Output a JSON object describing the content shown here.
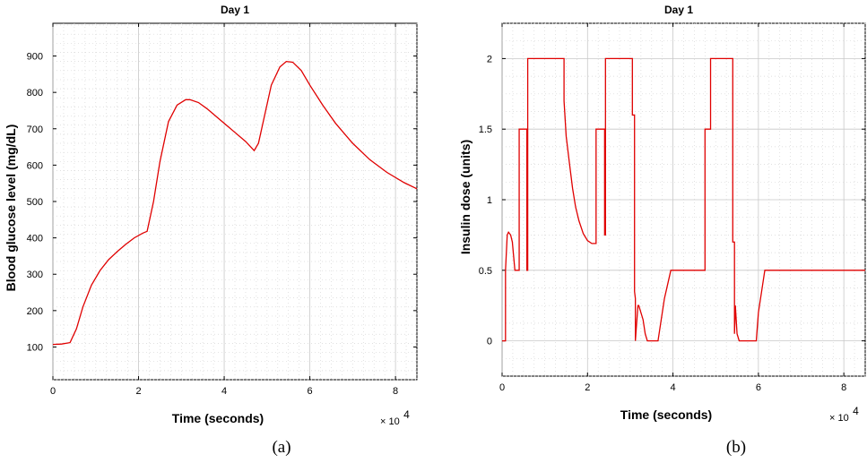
{
  "panels": [
    {
      "caption": "(a)",
      "multiplier_base": "× 10",
      "multiplier_exp": "4"
    },
    {
      "caption": "(b)",
      "multiplier_base": "× 10",
      "multiplier_exp": "4"
    }
  ],
  "chart_data": [
    {
      "type": "line",
      "title": "Day 1",
      "xlabel": "Time (seconds)",
      "ylabel": "Blood glucose level (mg/dL)",
      "x_scale_note": "x values in units of 10^4 seconds",
      "xlim": [
        0,
        8.5
      ],
      "ylim": [
        10,
        990
      ],
      "xticks": [
        0,
        2,
        4,
        6,
        8
      ],
      "xtick_labels": [
        "0",
        "2",
        "4",
        "6",
        "8"
      ],
      "yticks": [
        100,
        200,
        300,
        400,
        500,
        600,
        700,
        800,
        900
      ],
      "ytick_labels": [
        "100",
        "200",
        "300",
        "400",
        "500",
        "600",
        "700",
        "800",
        "900"
      ],
      "grid": true,
      "line_color": "#e00000",
      "series": [
        {
          "x": [
            0,
            0.2,
            0.4,
            0.55,
            0.7,
            0.9,
            1.1,
            1.3,
            1.5,
            1.7,
            1.9,
            2.1,
            2.2,
            2.35,
            2.5,
            2.7,
            2.9,
            3.1,
            3.2,
            3.4,
            3.6,
            3.9,
            4.2,
            4.5,
            4.7,
            4.8,
            4.95,
            5.1,
            5.3,
            5.45,
            5.6,
            5.8,
            6.0,
            6.3,
            6.6,
            7.0,
            7.4,
            7.8,
            8.2,
            8.5
          ],
          "y": [
            107,
            108,
            112,
            150,
            210,
            270,
            310,
            340,
            362,
            382,
            400,
            413,
            418,
            500,
            610,
            720,
            765,
            780,
            780,
            772,
            755,
            725,
            695,
            665,
            640,
            660,
            740,
            820,
            870,
            885,
            883,
            860,
            820,
            765,
            715,
            660,
            615,
            580,
            552,
            535
          ]
        }
      ]
    },
    {
      "type": "line",
      "title": "Day 1",
      "xlabel": "Time (seconds)",
      "ylabel": "Insulin dose (units)",
      "x_scale_note": "x values in units of 10^4 seconds",
      "xlim": [
        0,
        8.5
      ],
      "ylim": [
        -0.25,
        2.25
      ],
      "xticks": [
        0,
        2,
        4,
        6,
        8
      ],
      "xtick_labels": [
        "0",
        "2",
        "4",
        "6",
        "8"
      ],
      "yticks": [
        0,
        0.5,
        1,
        1.5,
        2
      ],
      "ytick_labels": [
        "0",
        "0.5",
        "1",
        "1.5",
        "2"
      ],
      "grid": true,
      "line_color": "#e00000",
      "series": [
        {
          "x": [
            0,
            0.08,
            0.08,
            0.12,
            0.15,
            0.2,
            0.24,
            0.27,
            0.3,
            0.33,
            0.35,
            0.35,
            0.4,
            0.4,
            0.42,
            0.44,
            0.44,
            0.58,
            0.58,
            0.6,
            0.6,
            0.62,
            0.62,
            0.7,
            0.9,
            1.1,
            1.2,
            1.4,
            1.45,
            1.45,
            1.5,
            1.58,
            1.65,
            1.72,
            1.8,
            1.9,
            2.0,
            2.1,
            2.2,
            2.2,
            2.4,
            2.4,
            2.42,
            2.42,
            2.44,
            2.44,
            3.05,
            3.05,
            3.1,
            3.1,
            3.12,
            3.12,
            3.18,
            3.2,
            3.2,
            3.3,
            3.35,
            3.4,
            3.45,
            3.65,
            3.7,
            3.8,
            3.95,
            4.7,
            4.75,
            4.75,
            4.85,
            4.85,
            4.88,
            4.88,
            5.0,
            5.0,
            5.4,
            5.4,
            5.44,
            5.44,
            5.46,
            5.48,
            5.5,
            5.55,
            5.6,
            5.95,
            6.0,
            6.1,
            6.15,
            8.5
          ],
          "y": [
            0,
            0,
            0.5,
            0.75,
            0.77,
            0.75,
            0.7,
            0.6,
            0.5,
            0.5,
            0.5,
            0.5,
            0.5,
            1.5,
            1.5,
            1.5,
            1.5,
            1.5,
            0.5,
            0.5,
            2,
            2,
            2,
            2,
            2,
            2,
            2,
            2,
            2,
            1.7,
            1.45,
            1.25,
            1.08,
            0.95,
            0.85,
            0.76,
            0.71,
            0.69,
            0.69,
            1.5,
            1.5,
            0.75,
            0.75,
            2,
            2,
            2,
            2,
            1.6,
            1.6,
            0.35,
            0.3,
            0,
            0.25,
            0.25,
            0.25,
            0.15,
            0.05,
            0,
            0,
            0,
            0.1,
            0.3,
            0.5,
            0.5,
            0.5,
            1.5,
            1.5,
            1.5,
            1.5,
            2,
            2,
            2,
            2,
            0.7,
            0.7,
            0.05,
            0.25,
            0.15,
            0.05,
            0,
            0,
            0,
            0.2,
            0.4,
            0.5,
            0.5
          ]
        }
      ]
    }
  ]
}
